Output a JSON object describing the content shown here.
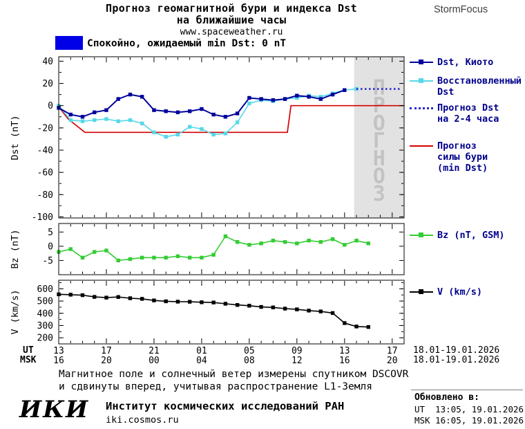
{
  "header": {
    "title_line1": "Прогноз геомагнитной бури и индекса Dst",
    "title_line2": "на ближайшие часы",
    "title_line3": "www.spaceweather.ru",
    "brand": "StormFocus"
  },
  "status": {
    "swatch_color": "#0000E8",
    "label": "Спокойно, ожидаемый min Dst: 0 nT"
  },
  "forecast_watermark": "ПРОГНОЗ",
  "colors": {
    "forecast_bg": "#E2E2E2",
    "forecast_text": "#C3C3C3",
    "legend_text": "#00008B",
    "dst_kyoto": "#00009C",
    "dst_restored": "#55D8E8",
    "dst_forecast": "#2A2AD6",
    "storm_forecast": "#D40000",
    "bz": "#33CC33",
    "v": "#000000"
  },
  "legend": {
    "items": [
      {
        "label": "Dst, Киото",
        "color": "#00009C",
        "marker": "square",
        "style": "solid"
      },
      {
        "label": "Восстановленный\nDst",
        "color": "#55D8E8",
        "marker": "square",
        "style": "solid"
      },
      {
        "label": "Прогноз Dst\nна 2-4 часа",
        "color": "#2A2AD6",
        "marker": "none",
        "style": "dotted"
      },
      {
        "label": "Прогноз\nсилы бури\n(min Dst)",
        "color": "#D40000",
        "marker": "none",
        "style": "solid"
      }
    ],
    "bz": {
      "label": "Bz (nT, GSM)",
      "color": "#33CC33",
      "marker": "square",
      "style": "solid"
    },
    "v": {
      "label": "V (km/s)",
      "color": "#000000",
      "marker": "square",
      "style": "solid"
    }
  },
  "xaxis": {
    "ut_prefix": "UT",
    "msk_prefix": "MSK",
    "ut_labels": [
      "13",
      "17",
      "21",
      "01",
      "05",
      "09",
      "13",
      "17"
    ],
    "msk_labels": [
      "16",
      "20",
      "00",
      "04",
      "08",
      "12",
      "16",
      "20"
    ],
    "ut_date": "18.01-19.01.2026",
    "msk_date": "18.01-19.01.2026"
  },
  "caption": {
    "line1": "Магнитное поле и солнечный ветер измерены спутником DSCOVR",
    "line2": "и сдвинуты вперед, учитывая распространение L1-Земля"
  },
  "footer": {
    "logo": "ИКИ",
    "institute": "Институт космических исследований РАН",
    "site": "iki.cosmos.ru",
    "updated_label": "Обновлено в:",
    "updated_ut": "UT  13:05, 19.01.2026",
    "updated_msk": "MSK 16:05, 19.01.2026"
  },
  "chart_data": [
    {
      "id": "dst",
      "type": "line",
      "title": "Прогноз геомагнитной бури и индекса Dst на ближайшие часы",
      "ylabel": "Dst (nT)",
      "ylim": [
        -101,
        44
      ],
      "yticks": [
        40,
        20,
        0,
        -20,
        -40,
        -60,
        -80,
        -100
      ],
      "yminor": 10,
      "xlim": [
        0,
        29
      ],
      "xticks": [
        0,
        4,
        8,
        12,
        16,
        20,
        24,
        28
      ],
      "forecast_region": {
        "start": 24.8,
        "end": 29
      },
      "series": [
        {
          "name": "Прогноз силы бури (min Dst)",
          "color": "#D40000",
          "style": "solid",
          "marker": "none",
          "width": 1.7,
          "x": [
            0,
            0.8,
            2.2,
            19.2,
            19.5,
            29
          ],
          "y": [
            -1,
            -12,
            -24,
            -24,
            0,
            0
          ]
        },
        {
          "name": "Восстановленный Dst",
          "color": "#55D8E8",
          "style": "solid",
          "marker": "square",
          "width": 1.6,
          "x0": 0,
          "dx": 1,
          "y": [
            0,
            -13,
            -14,
            -13,
            -12,
            -14,
            -13,
            -16,
            -24,
            -28,
            -26,
            -19,
            -21,
            -26,
            -25,
            -15,
            2,
            5,
            4,
            6,
            7,
            9,
            8,
            11,
            14,
            15
          ]
        },
        {
          "name": "Dst, Киото",
          "color": "#00009C",
          "style": "solid",
          "marker": "square",
          "width": 2,
          "x0": 0,
          "dx": 1,
          "y": [
            -2,
            -8,
            -10,
            -6,
            -4,
            6,
            10,
            8,
            -4,
            -5,
            -6,
            -5,
            -3,
            -8,
            -10,
            -7,
            7,
            6,
            5,
            6,
            9,
            8,
            6,
            10,
            14
          ]
        },
        {
          "name": "Прогноз Dst на 2-4 часа",
          "color": "#2A2AD6",
          "style": "dotted",
          "marker": "none",
          "width": 2.6,
          "x": [
            25,
            28.7
          ],
          "y": [
            15,
            15
          ]
        }
      ]
    },
    {
      "id": "bz",
      "type": "line",
      "title": "",
      "ylabel": "Bz (nT)",
      "ylim": [
        -10,
        8
      ],
      "yticks": [
        5,
        0,
        -5
      ],
      "xlim": [
        0,
        29
      ],
      "series": [
        {
          "name": "Bz (nT, GSM)",
          "color": "#33CC33",
          "style": "solid",
          "marker": "square",
          "width": 1.6,
          "x0": 0,
          "dx": 1,
          "y": [
            -2,
            -1,
            -4,
            -2,
            -1.5,
            -5,
            -4.5,
            -4,
            -4,
            -4,
            -3.5,
            -4,
            -4,
            -3,
            3.5,
            1.5,
            0.5,
            1,
            2,
            1.5,
            1,
            2,
            1.5,
            2.5,
            0.5,
            2,
            1
          ]
        }
      ]
    },
    {
      "id": "v",
      "type": "line",
      "title": "",
      "ylabel": "V (km/s)",
      "ylim": [
        150,
        670
      ],
      "yticks": [
        600,
        500,
        400,
        300,
        200
      ],
      "yminor": 50,
      "xlim": [
        0,
        29
      ],
      "series": [
        {
          "name": "V (km/s)",
          "color": "#000000",
          "style": "solid",
          "marker": "square",
          "width": 1.6,
          "x0": 0,
          "dx": 1,
          "y": [
            555,
            552,
            548,
            534,
            528,
            533,
            523,
            518,
            505,
            498,
            495,
            494,
            490,
            488,
            478,
            468,
            462,
            452,
            448,
            438,
            432,
            422,
            415,
            402,
            320,
            292,
            288
          ]
        }
      ]
    }
  ]
}
